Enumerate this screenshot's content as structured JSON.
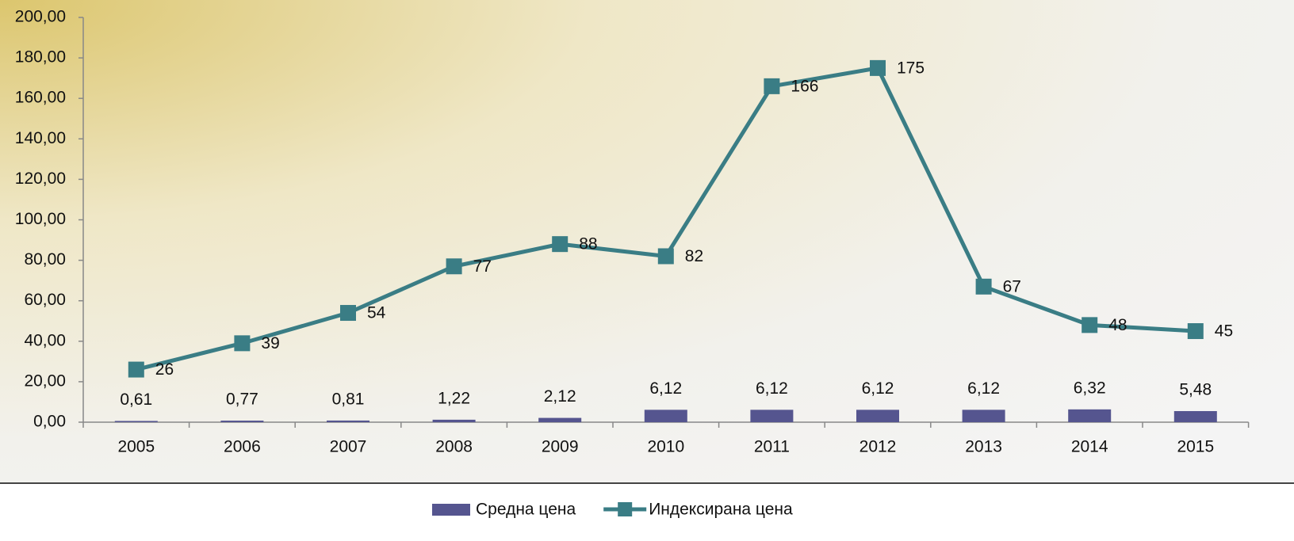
{
  "chart_data": {
    "type": "combo",
    "categories": [
      "2005",
      "2006",
      "2007",
      "2008",
      "2009",
      "2010",
      "2011",
      "2012",
      "2013",
      "2014",
      "2015"
    ],
    "series": [
      {
        "name": "Средна цена",
        "type": "bar",
        "color": "#55558f",
        "values": [
          0.61,
          0.77,
          0.81,
          1.22,
          2.12,
          6.12,
          6.12,
          6.12,
          6.12,
          6.32,
          5.48
        ],
        "value_labels": [
          "0,61",
          "0,77",
          "0,81",
          "1,22",
          "2,12",
          "6,12",
          "6,12",
          "6,12",
          "6,12",
          "6,32",
          "5,48"
        ]
      },
      {
        "name": "Индексирана цена",
        "type": "line",
        "color": "#3a7d85",
        "values": [
          26,
          39,
          54,
          77,
          88,
          82,
          166,
          175,
          67,
          48,
          45
        ]
      }
    ],
    "ylim": [
      0,
      200
    ],
    "yticks": [
      {
        "value": 0,
        "label": "0,00"
      },
      {
        "value": 20,
        "label": "20,00"
      },
      {
        "value": 40,
        "label": "40,00"
      },
      {
        "value": 60,
        "label": "60,00"
      },
      {
        "value": 80,
        "label": "80,00"
      },
      {
        "value": 100,
        "label": "100,00"
      },
      {
        "value": 120,
        "label": "120,00"
      },
      {
        "value": 140,
        "label": "140,00"
      },
      {
        "value": 160,
        "label": "160,00"
      },
      {
        "value": 180,
        "label": "180,00"
      },
      {
        "value": 200,
        "label": "200,00"
      }
    ],
    "legend": "bottom"
  }
}
